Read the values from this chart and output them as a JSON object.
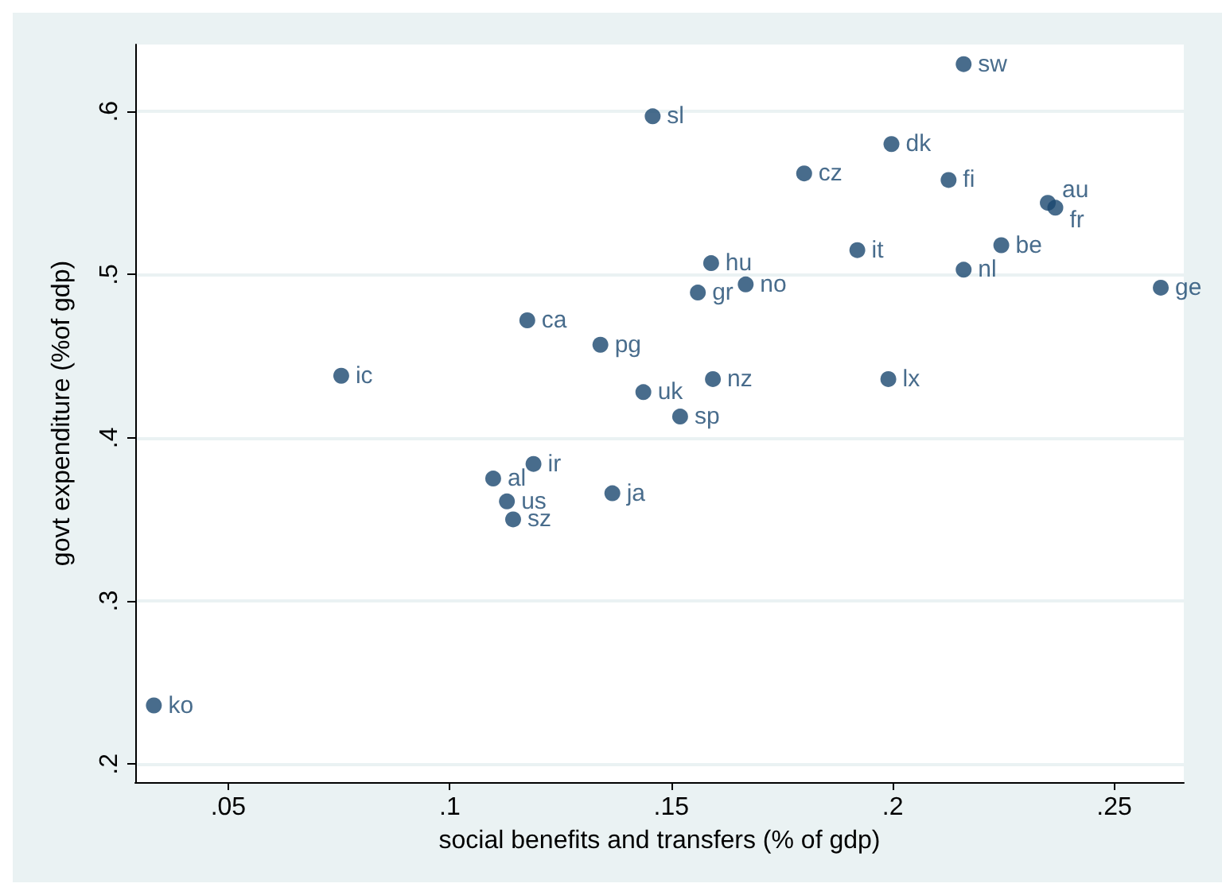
{
  "chart_data": {
    "type": "scatter",
    "xlabel": "social benefits and transfers (% of gdp)",
    "ylabel": "govt expenditure (%of gdp)",
    "x": [
      0.216,
      0.1458,
      0.1997,
      0.18,
      0.2126,
      0.235,
      0.2367,
      0.2245,
      0.192,
      0.216,
      0.159,
      0.1668,
      0.156,
      0.2605,
      0.1175,
      0.134,
      0.0755,
      0.1437,
      0.1594,
      0.199,
      0.152,
      0.1189,
      0.1098,
      0.1367,
      0.1129,
      0.1143,
      0.0332
    ],
    "values": [
      0.629,
      0.597,
      0.58,
      0.562,
      0.558,
      0.544,
      0.541,
      0.518,
      0.515,
      0.503,
      0.507,
      0.494,
      0.489,
      0.492,
      0.472,
      0.457,
      0.438,
      0.428,
      0.436,
      0.436,
      0.413,
      0.384,
      0.375,
      0.366,
      0.361,
      0.35,
      0.236
    ],
    "value_labels": [
      "sw",
      "sl",
      "dk",
      "cz",
      "fi",
      "au",
      "fr",
      "be",
      "it",
      "nl",
      "hu",
      "no",
      "gr",
      "ge",
      "ca",
      "pg",
      "ic",
      "uk",
      "nz",
      "lx",
      "sp",
      "ir",
      "al",
      "ja",
      "us",
      "sz",
      "ko"
    ],
    "color": "#1a476f",
    "marker": "circle",
    "xlim": [
      0.029,
      0.2657
    ],
    "ylim": [
      0.189,
      0.641
    ],
    "xticks": [
      {
        "value": 0.05,
        "label": ".05"
      },
      {
        "value": 0.1,
        "label": ".1"
      },
      {
        "value": 0.15,
        "label": ".15"
      },
      {
        "value": 0.2,
        "label": ".2"
      },
      {
        "value": 0.25,
        "label": ".25"
      }
    ],
    "yticks": [
      {
        "value": 0.2,
        "label": ".2"
      },
      {
        "value": 0.3,
        "label": ".3"
      },
      {
        "value": 0.4,
        "label": ".4"
      },
      {
        "value": 0.5,
        "label": ".5"
      },
      {
        "value": 0.6,
        "label": ".6"
      }
    ],
    "grid": "y"
  }
}
